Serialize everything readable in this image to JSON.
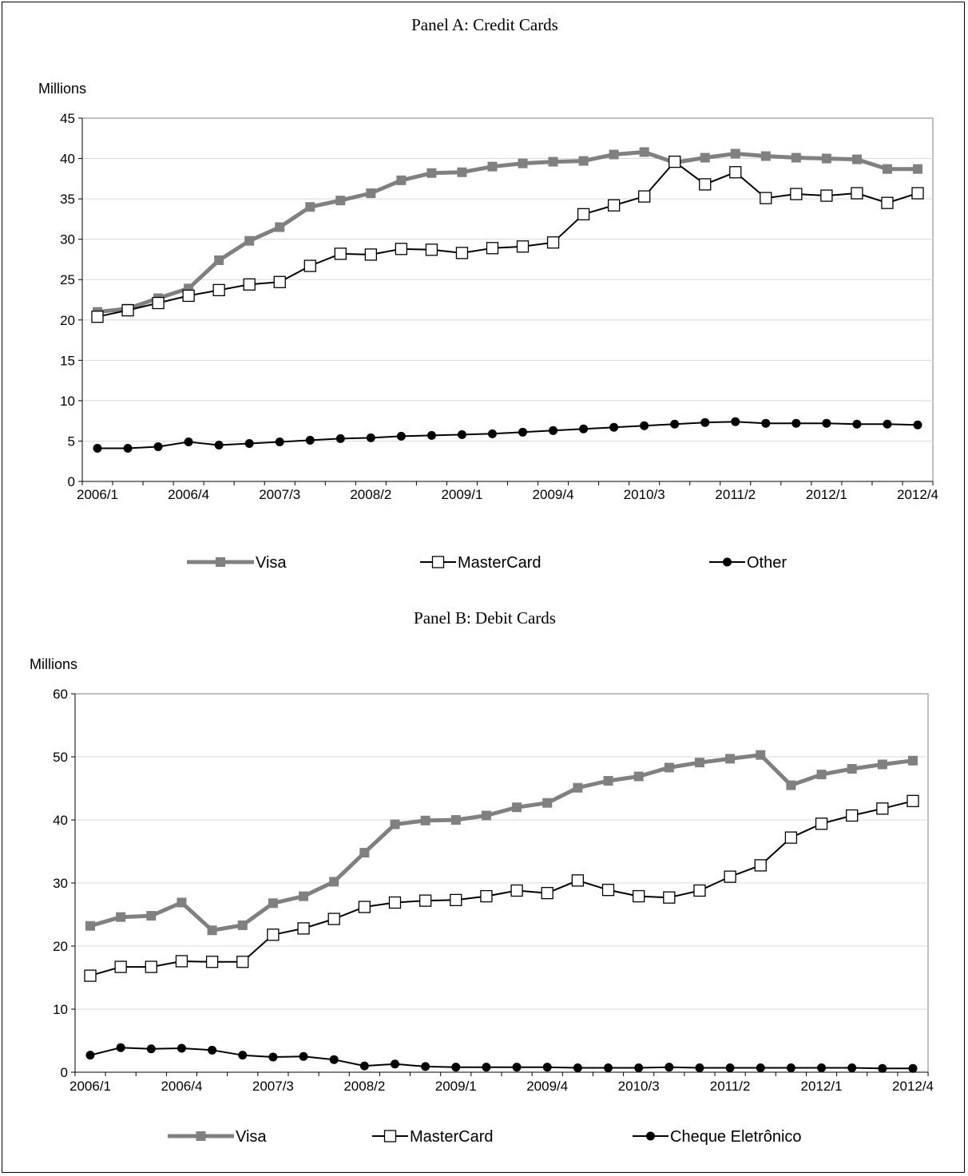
{
  "chart_data": [
    {
      "type": "line",
      "title": "Panel A: Credit Cards",
      "ylabel": "Millions",
      "xlabel": "",
      "ylim": [
        0,
        45
      ],
      "y_ticks": [
        "0",
        "5",
        "10",
        "15",
        "20",
        "25",
        "30",
        "35",
        "40",
        "45"
      ],
      "x_tick_labels": [
        "2006/1",
        "2006/4",
        "2007/3",
        "2008/2",
        "2009/1",
        "2009/4",
        "2010/3",
        "2011/2",
        "2012/1",
        "2012/4"
      ],
      "grid": true,
      "legend": "bottom",
      "series": [
        {
          "name": "Visa",
          "color": "#808080",
          "marker": "square-filled",
          "values": [
            21.0,
            21.4,
            22.7,
            23.9,
            27.4,
            29.8,
            31.5,
            34.0,
            34.8,
            35.7,
            37.3,
            38.2,
            38.3,
            39.0,
            39.4,
            39.6,
            39.7,
            40.5,
            40.8,
            39.5,
            40.1,
            40.6,
            40.3,
            40.1,
            40.0,
            39.9,
            38.7,
            38.7
          ]
        },
        {
          "name": "MasterCard",
          "color": "#000000",
          "marker": "square-open",
          "values": [
            20.4,
            21.2,
            22.1,
            23.0,
            23.7,
            24.4,
            24.7,
            26.7,
            28.2,
            28.1,
            28.8,
            28.7,
            28.3,
            28.9,
            29.1,
            29.6,
            33.1,
            34.2,
            35.3,
            39.6,
            36.8,
            38.3,
            35.1,
            35.6,
            35.4,
            35.7,
            34.5,
            35.7
          ]
        },
        {
          "name": "Other",
          "color": "#000000",
          "marker": "circle-filled",
          "values": [
            4.1,
            4.1,
            4.3,
            4.9,
            4.5,
            4.7,
            4.9,
            5.1,
            5.3,
            5.4,
            5.6,
            5.7,
            5.8,
            5.9,
            6.1,
            6.3,
            6.5,
            6.7,
            6.9,
            7.1,
            7.3,
            7.4,
            7.2,
            7.2,
            7.2,
            7.1,
            7.1,
            7.0
          ]
        }
      ]
    },
    {
      "type": "line",
      "title": "Panel B: Debit Cards",
      "ylabel": "Millions",
      "xlabel": "",
      "ylim": [
        0,
        60
      ],
      "y_ticks": [
        "0",
        "10",
        "20",
        "30",
        "40",
        "50",
        "60"
      ],
      "x_tick_labels": [
        "2006/1",
        "2006/4",
        "2007/3",
        "2008/2",
        "2009/1",
        "2009/4",
        "2010/3",
        "2011/2",
        "2012/1",
        "2012/4"
      ],
      "grid": true,
      "legend": "bottom",
      "series": [
        {
          "name": "Visa",
          "color": "#808080",
          "marker": "square-filled",
          "values": [
            23.2,
            24.6,
            24.8,
            26.9,
            22.5,
            23.3,
            26.8,
            27.9,
            30.2,
            34.8,
            39.3,
            39.9,
            40.0,
            40.7,
            42.0,
            42.7,
            45.1,
            46.2,
            46.9,
            48.3,
            49.1,
            49.7,
            50.3,
            45.5,
            47.2,
            48.1,
            48.8,
            49.4
          ]
        },
        {
          "name": "MasterCard",
          "color": "#000000",
          "marker": "square-open",
          "values": [
            15.3,
            16.7,
            16.7,
            17.6,
            17.5,
            17.5,
            21.8,
            22.8,
            24.3,
            26.2,
            26.9,
            27.2,
            27.3,
            27.9,
            28.8,
            28.4,
            30.4,
            28.9,
            27.9,
            27.7,
            28.8,
            31.0,
            32.8,
            37.2,
            39.4,
            40.7,
            41.8,
            43.0
          ]
        },
        {
          "name": "Cheque Eletrônico",
          "color": "#000000",
          "marker": "circle-filled",
          "values": [
            2.7,
            3.9,
            3.7,
            3.8,
            3.5,
            2.7,
            2.4,
            2.5,
            2.0,
            1.0,
            1.3,
            0.9,
            0.8,
            0.8,
            0.8,
            0.8,
            0.7,
            0.7,
            0.7,
            0.8,
            0.7,
            0.7,
            0.7,
            0.7,
            0.7,
            0.7,
            0.6,
            0.6
          ]
        }
      ]
    }
  ]
}
